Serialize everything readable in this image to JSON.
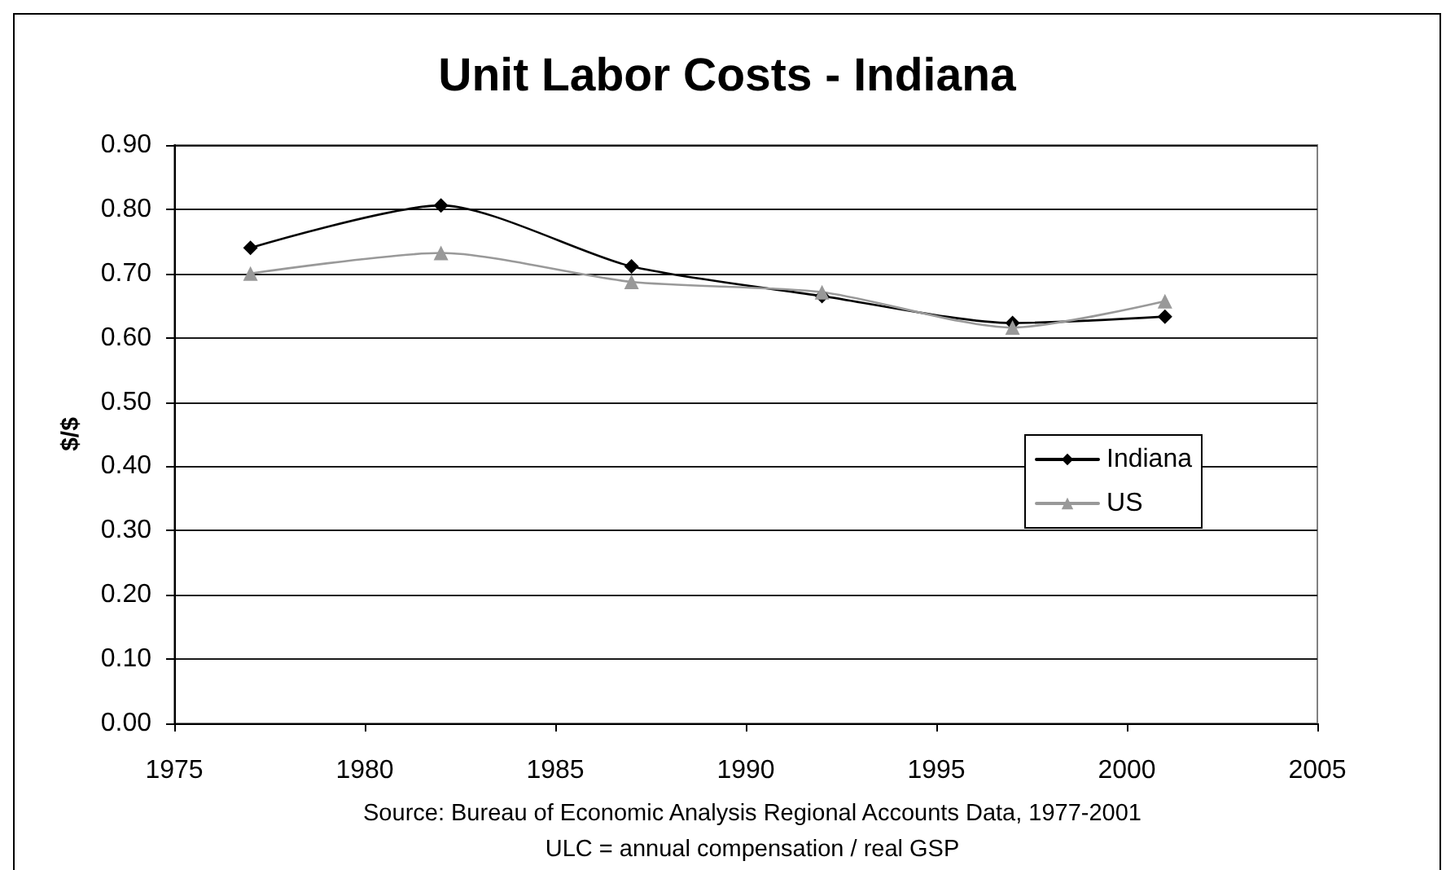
{
  "chart_data": {
    "type": "line",
    "title": "Unit Labor Costs - Indiana",
    "ylabel": "$/$",
    "annotations": [
      "Source: Bureau of Economic Analysis Regional Accounts Data, 1977-2001",
      "ULC = annual compensation / real GSP"
    ],
    "x": [
      1977,
      1982,
      1987,
      1992,
      1997,
      2001
    ],
    "series": [
      {
        "name": "Indiana",
        "color": "#000000",
        "marker": "diamond",
        "values": [
          0.74,
          0.806,
          0.711,
          0.665,
          0.623,
          0.633
        ]
      },
      {
        "name": "US",
        "color": "#999999",
        "marker": "triangle",
        "values": [
          0.7,
          0.732,
          0.687,
          0.671,
          0.616,
          0.657
        ]
      }
    ],
    "xlim": [
      1975,
      2005
    ],
    "xticks": [
      1975,
      1980,
      1985,
      1990,
      1995,
      2000,
      2005
    ],
    "ylim": [
      0,
      0.9
    ],
    "yticks": [
      {
        "value": 0,
        "label": "0.00"
      },
      {
        "value": 0.1,
        "label": "0.10"
      },
      {
        "value": 0.2,
        "label": "0.20"
      },
      {
        "value": 0.3,
        "label": "0.30"
      },
      {
        "value": 0.4,
        "label": "0.40"
      },
      {
        "value": 0.5,
        "label": "0.50"
      },
      {
        "value": 0.6,
        "label": "0.60"
      },
      {
        "value": 0.7,
        "label": "0.70"
      },
      {
        "value": 0.8,
        "label": "0.80"
      },
      {
        "value": 0.9,
        "label": "0.90"
      }
    ],
    "grid": "y",
    "legend": "right",
    "line_style": "solid"
  }
}
